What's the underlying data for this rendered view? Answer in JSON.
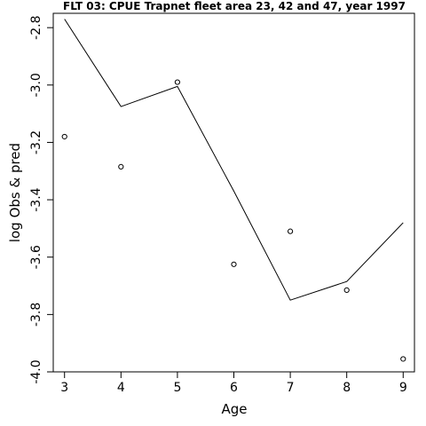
{
  "chart_data": {
    "type": "line",
    "title": "FLT 03: CPUE Trapnet fleet area 23, 42 and 47, year 1997",
    "xlabel": "Age",
    "ylabel": "log Obs & pred",
    "x": [
      3,
      4,
      5,
      6,
      7,
      8,
      9
    ],
    "xlim": [
      2.8,
      9.2
    ],
    "ylim": [
      -4.0,
      -2.75
    ],
    "x_ticks": [
      3,
      4,
      5,
      6,
      7,
      8,
      9
    ],
    "y_ticks": [
      -4.0,
      -3.8,
      -3.6,
      -3.4,
      -3.2,
      -3.0,
      -2.8
    ],
    "y_tick_labels": [
      "-4.0",
      "-3.8",
      "-3.6",
      "-3.4",
      "-3.2",
      "-3.0",
      "-2.8"
    ],
    "grid": false,
    "series": [
      {
        "style": "line",
        "color": "#000000",
        "values": [
          -2.77,
          -3.075,
          -3.005,
          -3.37,
          -3.75,
          -3.685,
          -3.48
        ]
      },
      {
        "style": "points",
        "marker": "open-circle",
        "color": "#000000",
        "values": [
          -3.18,
          -3.285,
          -2.99,
          -3.625,
          -3.51,
          -3.715,
          -3.955
        ]
      }
    ]
  }
}
